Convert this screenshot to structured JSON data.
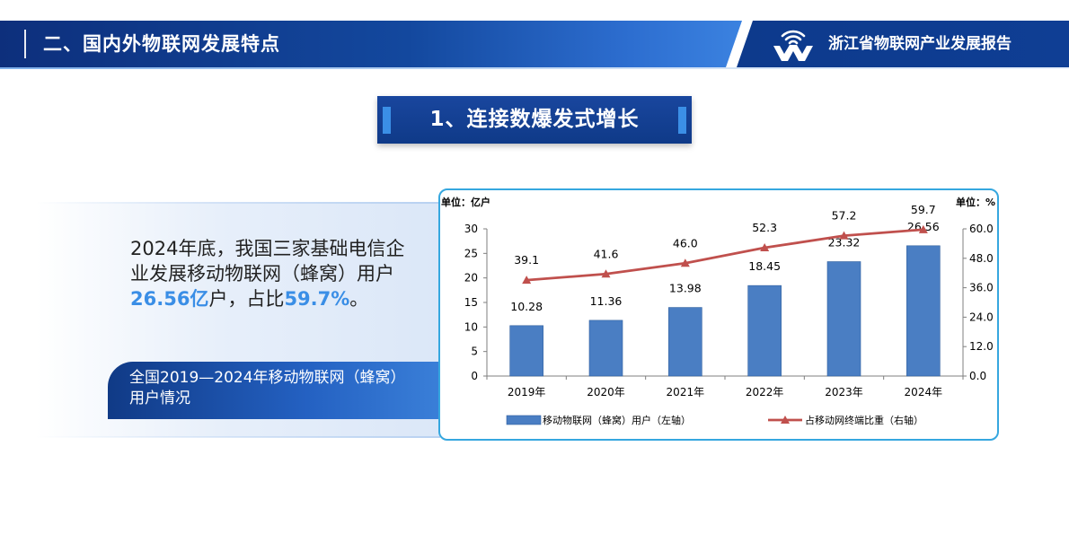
{
  "header": {
    "section_title": "二、国内外物联网发展特点",
    "report_title": "浙江省物联网产业发展报告"
  },
  "subheading": "1、连接数爆发式增长",
  "summary": {
    "text1": "2024年底，我国三家基础电信企业发展移动物联网（蜂窝）用户",
    "highlight1": "26.56亿",
    "text2": "户，占比",
    "highlight2": "59.7%",
    "text3": "。"
  },
  "caption": "全国2019—2024年移动物联网（蜂窝）用户情况",
  "colors": {
    "bar": "#4a7ec3",
    "line": "#c0504d",
    "accent": "#3a8ee6",
    "frame": "#36a7df"
  },
  "chart_data": {
    "type": "bar",
    "categories": [
      "2019年",
      "2020年",
      "2021年",
      "2022年",
      "2023年",
      "2024年"
    ],
    "series": [
      {
        "name": "移动物联网（蜂窝）用户（左轴）",
        "type": "bar",
        "axis": "left",
        "values": [
          10.28,
          11.36,
          13.98,
          18.45,
          23.32,
          26.56
        ],
        "labels": [
          "10.28",
          "11.36",
          "13.98",
          "18.45",
          "23.32",
          "26.56"
        ]
      },
      {
        "name": "占移动网终端比重（右轴）",
        "type": "line",
        "axis": "right",
        "values": [
          39.1,
          41.6,
          46.0,
          52.3,
          57.2,
          59.7
        ],
        "labels": [
          "39.1",
          "41.6",
          "46.0",
          "52.3",
          "57.2",
          "59.7"
        ]
      }
    ],
    "left_axis": {
      "unit": "单位：亿户",
      "ylim": [
        0,
        30
      ],
      "ticks": [
        "0",
        "5",
        "10",
        "15",
        "20",
        "25",
        "30"
      ]
    },
    "right_axis": {
      "unit": "单位：%",
      "ylim": [
        0,
        60
      ],
      "ticks": [
        "0.0",
        "12.0",
        "24.0",
        "36.0",
        "48.0",
        "60.0"
      ]
    },
    "grid": false,
    "legend_position": "bottom"
  }
}
